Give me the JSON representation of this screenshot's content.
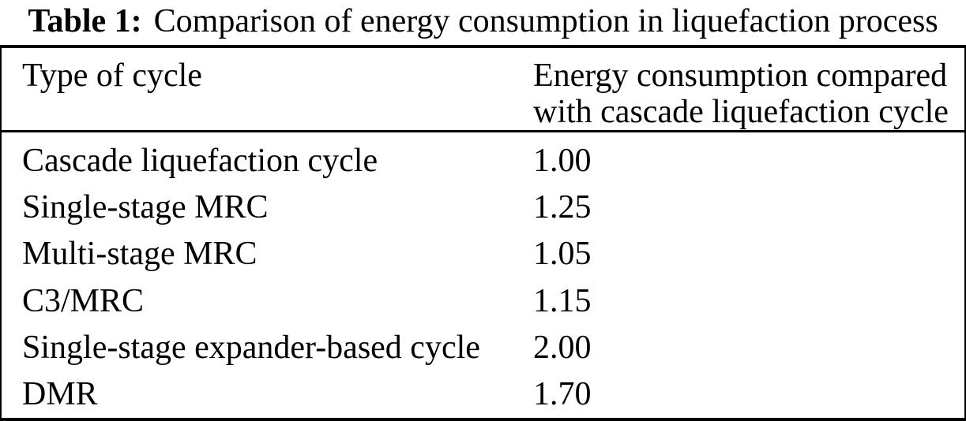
{
  "caption": {
    "label": "Table 1:",
    "text": "Comparison of energy consumption in liquefaction process"
  },
  "table": {
    "header": {
      "col1": "Type of cycle",
      "col2_lines": [
        "Energy consumption compared",
        "with cascade liquefaction cycle"
      ]
    },
    "rows": [
      {
        "type": "Cascade liquefaction cycle",
        "value": "1.00"
      },
      {
        "type": "Single-stage MRC",
        "value": "1.25"
      },
      {
        "type": "Multi-stage MRC",
        "value": "1.05"
      },
      {
        "type": "C3/MRC",
        "value": "1.15"
      },
      {
        "type": "Single-stage expander-based cycle",
        "value": "2.00"
      },
      {
        "type": "DMR",
        "value": "1.70"
      }
    ]
  },
  "chart_data": {
    "type": "table",
    "title": "Table 1: Comparison of energy consumption in liquefaction process",
    "columns": [
      "Type of cycle",
      "Energy consumption compared with cascade liquefaction cycle"
    ],
    "rows": [
      [
        "Cascade liquefaction cycle",
        1.0
      ],
      [
        "Single-stage MRC",
        1.25
      ],
      [
        "Multi-stage MRC",
        1.05
      ],
      [
        "C3/MRC",
        1.15
      ],
      [
        "Single-stage expander-based cycle",
        2.0
      ],
      [
        "DMR",
        1.7
      ]
    ]
  },
  "colors": {
    "text": "#000000",
    "background": "#ffffff",
    "rule": "#000000"
  }
}
